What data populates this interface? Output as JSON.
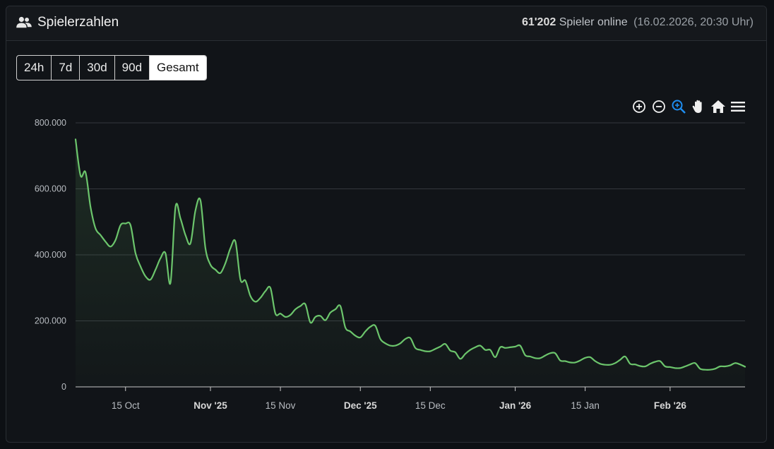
{
  "header": {
    "title": "Spielerzahlen",
    "player_count": "61'202",
    "player_label": "Spieler online",
    "timestamp": "(16.02.2026, 20:30 Uhr)"
  },
  "tabs": [
    {
      "label": "24h",
      "active": false
    },
    {
      "label": "7d",
      "active": false
    },
    {
      "label": "30d",
      "active": false
    },
    {
      "label": "90d",
      "active": false
    },
    {
      "label": "Gesamt",
      "active": true
    }
  ],
  "toolbar": [
    "zoom-in-icon",
    "zoom-out-icon",
    "selection-zoom-icon",
    "pan-icon",
    "reset-home-icon",
    "menu-icon"
  ],
  "colors": {
    "line": "#6cc56c",
    "accent": "#1f8ef1"
  },
  "chart_data": {
    "type": "area",
    "title": "",
    "xlabel": "",
    "ylabel": "",
    "ylim": [
      0,
      800000
    ],
    "y_ticks": [
      {
        "value": 0,
        "label": "0"
      },
      {
        "value": 200000,
        "label": "200.000"
      },
      {
        "value": 400000,
        "label": "400.000"
      },
      {
        "value": 600000,
        "label": "600.000"
      },
      {
        "value": 800000,
        "label": "800.000"
      }
    ],
    "x_range": [
      "2025-10-05",
      "2026-02-16"
    ],
    "x_ticks": [
      {
        "date": "2025-10-15",
        "label": "15 Oct",
        "bold": false
      },
      {
        "date": "2025-11-01",
        "label": "Nov '25",
        "bold": true
      },
      {
        "date": "2025-11-15",
        "label": "15 Nov",
        "bold": false
      },
      {
        "date": "2025-12-01",
        "label": "Dec '25",
        "bold": true
      },
      {
        "date": "2025-12-15",
        "label": "15 Dec",
        "bold": false
      },
      {
        "date": "2026-01-01",
        "label": "Jan '26",
        "bold": true
      },
      {
        "date": "2026-01-15",
        "label": "15 Jan",
        "bold": false
      },
      {
        "date": "2026-02-01",
        "label": "Feb '26",
        "bold": true
      }
    ],
    "grid": true,
    "series": [
      {
        "name": "",
        "points": [
          [
            "2025-10-05",
            750000
          ],
          [
            "2025-10-06",
            640000
          ],
          [
            "2025-10-07",
            650000
          ],
          [
            "2025-10-08",
            545000
          ],
          [
            "2025-10-09",
            480000
          ],
          [
            "2025-10-10",
            460000
          ],
          [
            "2025-10-11",
            440000
          ],
          [
            "2025-10-12",
            425000
          ],
          [
            "2025-10-13",
            445000
          ],
          [
            "2025-10-14",
            490000
          ],
          [
            "2025-10-15",
            495000
          ],
          [
            "2025-10-16",
            490000
          ],
          [
            "2025-10-17",
            405000
          ],
          [
            "2025-10-18",
            365000
          ],
          [
            "2025-10-19",
            335000
          ],
          [
            "2025-10-20",
            325000
          ],
          [
            "2025-10-21",
            355000
          ],
          [
            "2025-10-22",
            390000
          ],
          [
            "2025-10-23",
            405000
          ],
          [
            "2025-10-24",
            315000
          ],
          [
            "2025-10-25",
            545000
          ],
          [
            "2025-10-26",
            510000
          ],
          [
            "2025-10-27",
            460000
          ],
          [
            "2025-10-28",
            435000
          ],
          [
            "2025-10-29",
            535000
          ],
          [
            "2025-10-30",
            565000
          ],
          [
            "2025-10-31",
            420000
          ],
          [
            "2025-11-01",
            370000
          ],
          [
            "2025-11-02",
            355000
          ],
          [
            "2025-11-03",
            345000
          ],
          [
            "2025-11-04",
            375000
          ],
          [
            "2025-11-05",
            420000
          ],
          [
            "2025-11-06",
            440000
          ],
          [
            "2025-11-07",
            325000
          ],
          [
            "2025-11-08",
            322000
          ],
          [
            "2025-11-09",
            275000
          ],
          [
            "2025-11-10",
            258000
          ],
          [
            "2025-11-11",
            270000
          ],
          [
            "2025-11-12",
            290000
          ],
          [
            "2025-11-13",
            300000
          ],
          [
            "2025-11-14",
            222000
          ],
          [
            "2025-11-15",
            222000
          ],
          [
            "2025-11-16",
            212000
          ],
          [
            "2025-11-17",
            218000
          ],
          [
            "2025-11-18",
            235000
          ],
          [
            "2025-11-19",
            245000
          ],
          [
            "2025-11-20",
            250000
          ],
          [
            "2025-11-21",
            195000
          ],
          [
            "2025-11-22",
            212000
          ],
          [
            "2025-11-23",
            215000
          ],
          [
            "2025-11-24",
            202000
          ],
          [
            "2025-11-25",
            225000
          ],
          [
            "2025-11-26",
            235000
          ],
          [
            "2025-11-27",
            245000
          ],
          [
            "2025-11-28",
            180000
          ],
          [
            "2025-11-29",
            168000
          ],
          [
            "2025-11-30",
            155000
          ],
          [
            "2025-12-01",
            150000
          ],
          [
            "2025-12-02",
            168000
          ],
          [
            "2025-12-03",
            182000
          ],
          [
            "2025-12-04",
            185000
          ],
          [
            "2025-12-05",
            145000
          ],
          [
            "2025-12-06",
            132000
          ],
          [
            "2025-12-07",
            125000
          ],
          [
            "2025-12-08",
            125000
          ],
          [
            "2025-12-09",
            132000
          ],
          [
            "2025-12-10",
            145000
          ],
          [
            "2025-12-11",
            148000
          ],
          [
            "2025-12-12",
            118000
          ],
          [
            "2025-12-13",
            112000
          ],
          [
            "2025-12-14",
            108000
          ],
          [
            "2025-12-15",
            108000
          ],
          [
            "2025-12-16",
            115000
          ],
          [
            "2025-12-17",
            122000
          ],
          [
            "2025-12-18",
            130000
          ],
          [
            "2025-12-19",
            110000
          ],
          [
            "2025-12-20",
            105000
          ],
          [
            "2025-12-21",
            85000
          ],
          [
            "2025-12-22",
            100000
          ],
          [
            "2025-12-23",
            112000
          ],
          [
            "2025-12-24",
            120000
          ],
          [
            "2025-12-25",
            125000
          ],
          [
            "2025-12-26",
            112000
          ],
          [
            "2025-12-27",
            112000
          ],
          [
            "2025-12-28",
            90000
          ],
          [
            "2025-12-29",
            120000
          ],
          [
            "2025-12-30",
            118000
          ],
          [
            "2025-12-31",
            120000
          ],
          [
            "2026-01-01",
            122000
          ],
          [
            "2026-01-02",
            125000
          ],
          [
            "2026-01-03",
            96000
          ],
          [
            "2026-01-04",
            92000
          ],
          [
            "2026-01-05",
            87000
          ],
          [
            "2026-01-06",
            87000
          ],
          [
            "2026-01-07",
            95000
          ],
          [
            "2026-01-08",
            102000
          ],
          [
            "2026-01-09",
            102000
          ],
          [
            "2026-01-10",
            80000
          ],
          [
            "2026-01-11",
            78000
          ],
          [
            "2026-01-12",
            74000
          ],
          [
            "2026-01-13",
            74000
          ],
          [
            "2026-01-14",
            80000
          ],
          [
            "2026-01-15",
            88000
          ],
          [
            "2026-01-16",
            90000
          ],
          [
            "2026-01-17",
            78000
          ],
          [
            "2026-01-18",
            70000
          ],
          [
            "2026-01-19",
            67000
          ],
          [
            "2026-01-20",
            67000
          ],
          [
            "2026-01-21",
            72000
          ],
          [
            "2026-01-22",
            82000
          ],
          [
            "2026-01-23",
            92000
          ],
          [
            "2026-01-24",
            70000
          ],
          [
            "2026-01-25",
            68000
          ],
          [
            "2026-01-26",
            63000
          ],
          [
            "2026-01-27",
            62000
          ],
          [
            "2026-01-28",
            70000
          ],
          [
            "2026-01-29",
            76000
          ],
          [
            "2026-01-30",
            78000
          ],
          [
            "2026-01-31",
            62000
          ],
          [
            "2026-02-01",
            60000
          ],
          [
            "2026-02-02",
            57000
          ],
          [
            "2026-02-03",
            57000
          ],
          [
            "2026-02-04",
            62000
          ],
          [
            "2026-02-05",
            68000
          ],
          [
            "2026-02-06",
            72000
          ],
          [
            "2026-02-07",
            55000
          ],
          [
            "2026-02-08",
            52000
          ],
          [
            "2026-02-09",
            52000
          ],
          [
            "2026-02-10",
            55000
          ],
          [
            "2026-02-11",
            62000
          ],
          [
            "2026-02-12",
            62000
          ],
          [
            "2026-02-13",
            65000
          ],
          [
            "2026-02-14",
            72000
          ],
          [
            "2026-02-15",
            68000
          ],
          [
            "2026-02-16",
            61000
          ]
        ]
      }
    ]
  }
}
